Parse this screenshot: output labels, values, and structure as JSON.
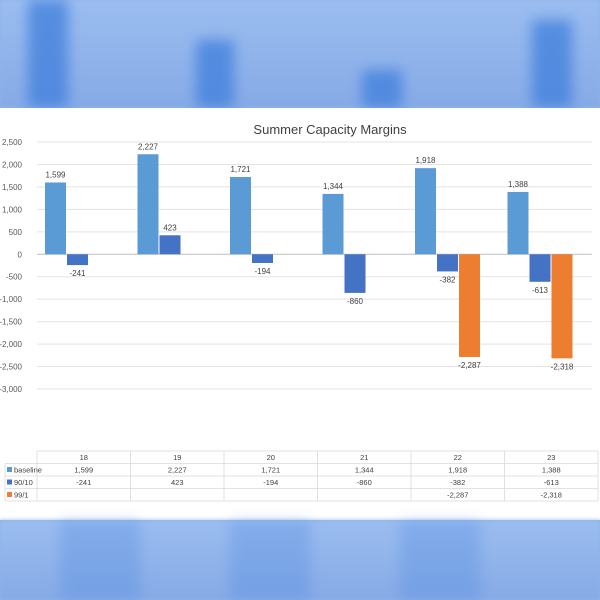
{
  "chart_data": {
    "type": "bar",
    "title": "Summer Capacity Margins",
    "xlabel": "",
    "ylabel": "",
    "categories": [
      "18",
      "19",
      "20",
      "21",
      "22",
      "23"
    ],
    "ylim": [
      -3000,
      2500
    ],
    "yticks": [
      2500,
      2000,
      1500,
      1000,
      500,
      0,
      -500,
      -1000,
      -1500,
      -2000,
      -2500,
      -3000
    ],
    "ytick_labels": [
      "2,500",
      "2,000",
      "1,500",
      "1,000",
      "500",
      "0",
      "-500",
      "-1,000",
      "-1,500",
      "-2,000",
      "-2,500",
      "-3,000"
    ],
    "grid": true,
    "legend": "data-table",
    "series": [
      {
        "name": "baseline",
        "color": "#5b9bd5",
        "values": [
          1599,
          2227,
          1721,
          1344,
          1918,
          1388
        ],
        "labels": [
          "1,599",
          "2,227",
          "1,721",
          "1,344",
          "1,918",
          "1,388"
        ]
      },
      {
        "name": "90/10",
        "color": "#4472c4",
        "values": [
          -241,
          423,
          -194,
          -860,
          -382,
          -613
        ],
        "labels": [
          "-241",
          "423",
          "-194",
          "-860",
          "-382",
          "-613"
        ]
      },
      {
        "name": "99/1",
        "color": "#ed7d31",
        "values": [
          null,
          null,
          null,
          null,
          -2287,
          -2318
        ],
        "labels": [
          "",
          "",
          "",
          "",
          "-2,287",
          "-2,318"
        ]
      }
    ]
  }
}
